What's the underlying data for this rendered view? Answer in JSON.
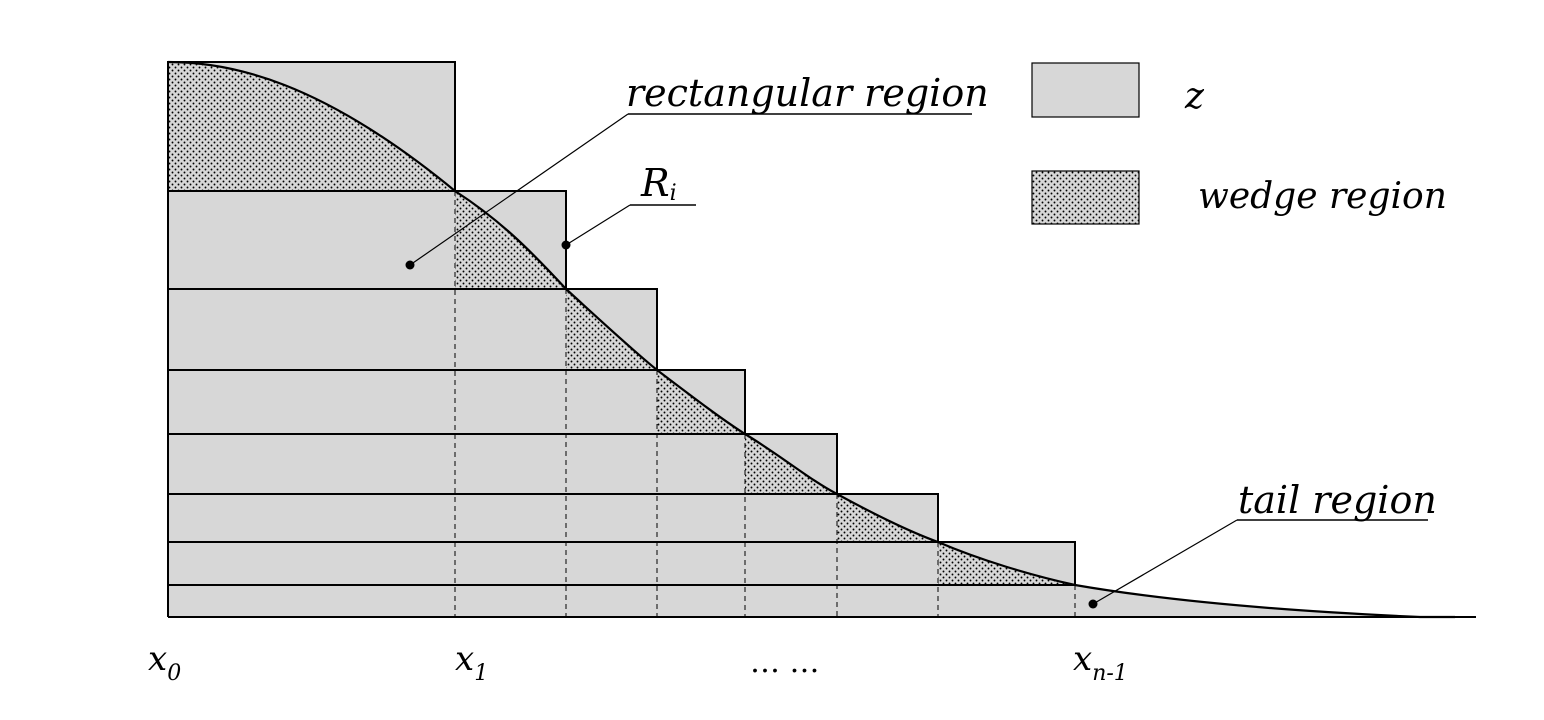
{
  "labels": {
    "rectangular_region": "rectangular region",
    "r_main": "R",
    "r_sub": "i",
    "tail_region": "tail region",
    "x0_main": "x",
    "x0_sub": "0",
    "x1_main": "x",
    "x1_sub": "1",
    "ellipsis": "… …",
    "xn1_main": "x",
    "xn1_sub": "n-1"
  },
  "legend": {
    "z_label": "z",
    "wedge_label": "wedge region"
  },
  "colors": {
    "fill": "#d7d7d7",
    "stroke": "#000000",
    "dot": "#000000",
    "background": "#ffffff"
  }
}
